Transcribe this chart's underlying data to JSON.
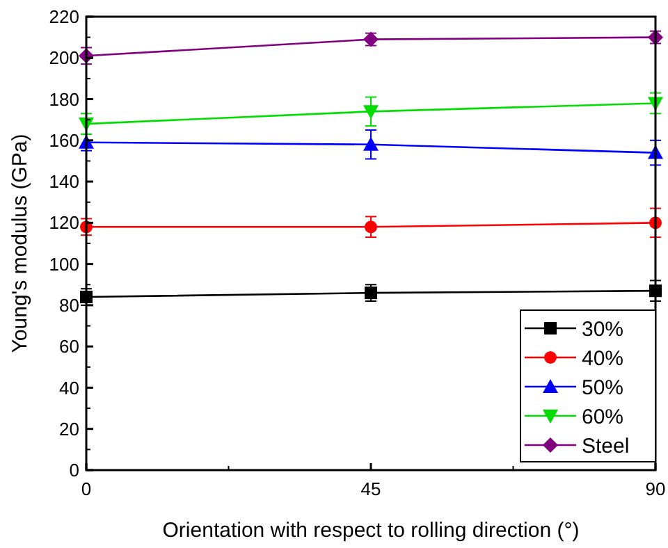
{
  "chart_data": {
    "type": "line",
    "xlabel": "Orientation with respect to rolling direction (°)",
    "ylabel": "Young's modulus (GPa)",
    "x": [
      0,
      45,
      90
    ],
    "xlim": [
      0,
      90
    ],
    "xticks": [
      0,
      45,
      90
    ],
    "ylim": [
      0,
      220
    ],
    "yticks": [
      0,
      20,
      40,
      60,
      80,
      100,
      120,
      140,
      160,
      180,
      200,
      220
    ],
    "legend": "bottom right",
    "series": [
      {
        "name": "30%",
        "color": "#000000",
        "marker": "square",
        "values": [
          84,
          86,
          87
        ],
        "errors": [
          4,
          4,
          5
        ]
      },
      {
        "name": "40%",
        "color": "#ff0000",
        "marker": "circle",
        "values": [
          118,
          118,
          120
        ],
        "errors": [
          4,
          5,
          7
        ]
      },
      {
        "name": "50%",
        "color": "#0000ff",
        "marker": "triangle",
        "values": [
          159,
          158,
          154
        ],
        "errors": [
          4,
          7,
          6
        ]
      },
      {
        "name": "60%",
        "color": "#00dd00",
        "marker": "triangle-down",
        "values": [
          168,
          174,
          178
        ],
        "errors": [
          5,
          7,
          5
        ]
      },
      {
        "name": "Steel",
        "color": "#800080",
        "marker": "diamond",
        "values": [
          201,
          209,
          210
        ],
        "errors": [
          4,
          3,
          3
        ]
      }
    ]
  }
}
